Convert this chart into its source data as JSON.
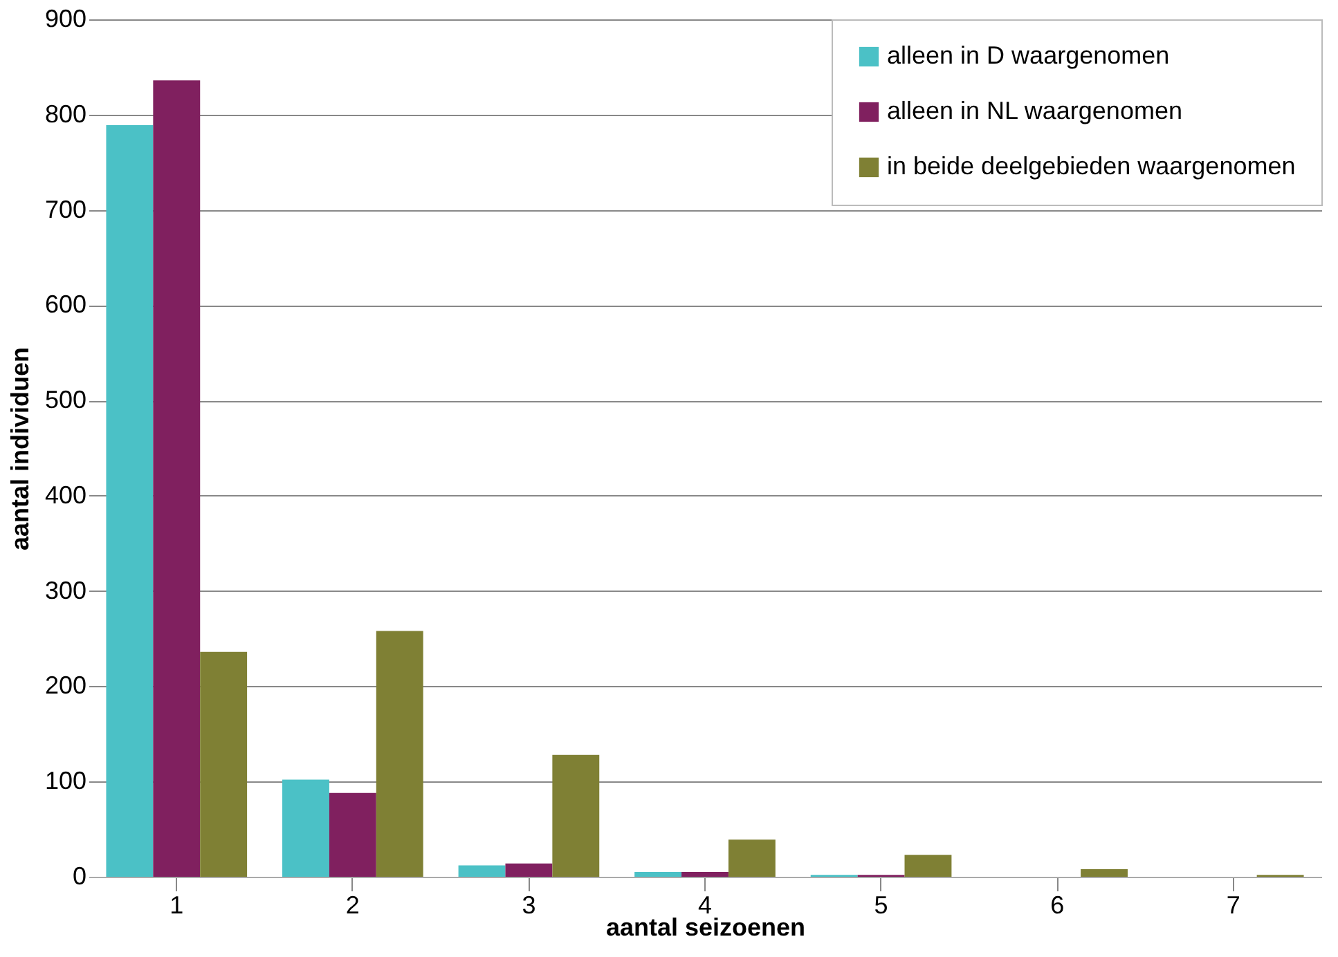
{
  "chart_data": {
    "type": "bar",
    "xlabel": "aantal seizoenen",
    "ylabel": "aantal individuen",
    "categories": [
      "1",
      "2",
      "3",
      "4",
      "5",
      "6",
      "7"
    ],
    "series": [
      {
        "name": "alleen in D waargenomen",
        "color": "#4bc1c6",
        "values": [
          789,
          102,
          12,
          5,
          2,
          0,
          0
        ]
      },
      {
        "name": "alleen in NL waargenomen",
        "color": "#80205f",
        "values": [
          836,
          88,
          14,
          5,
          2,
          0,
          0
        ]
      },
      {
        "name": "in beide deelgebieden waargenomen",
        "color": "#7f8034",
        "values": [
          236,
          258,
          128,
          39,
          23,
          8,
          2
        ]
      }
    ],
    "ylim": [
      0,
      900
    ],
    "yticks": [
      0,
      100,
      200,
      300,
      400,
      500,
      600,
      700,
      800,
      900
    ],
    "grid": "y",
    "legend": "top right"
  }
}
